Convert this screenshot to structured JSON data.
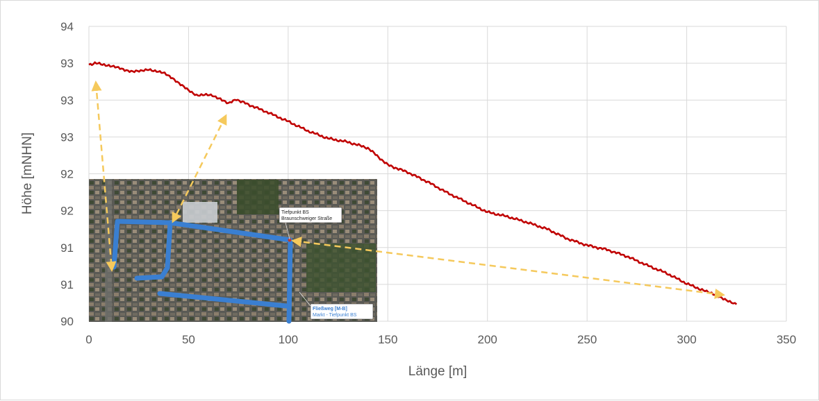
{
  "chart_data": {
    "type": "line",
    "title": "",
    "xlabel": "Länge [m]",
    "ylabel": "Höhe [mNHN]",
    "xlim": [
      0,
      350
    ],
    "ylim": [
      90,
      94
    ],
    "x_ticks": [
      0,
      50,
      100,
      150,
      200,
      250,
      300,
      350
    ],
    "x_tick_labels": [
      "0",
      "50",
      "100",
      "150",
      "200",
      "250",
      "300",
      "350"
    ],
    "y_ticks": [
      90,
      90.5,
      91,
      91.5,
      92,
      92.5,
      93,
      93.5,
      94
    ],
    "y_tick_labels": [
      "90",
      "91",
      "91",
      "92",
      "92",
      "93",
      "93",
      "93",
      "94"
    ],
    "grid": true,
    "series": [
      {
        "color": "#c00000",
        "x": [
          0,
          3,
          6,
          10,
          14,
          18,
          22,
          26,
          30,
          34,
          38,
          42,
          46,
          50,
          54,
          58,
          62,
          66,
          70,
          74,
          80,
          90,
          100,
          110,
          120,
          130,
          140,
          150,
          160,
          170,
          180,
          190,
          200,
          210,
          220,
          230,
          240,
          250,
          260,
          270,
          280,
          290,
          300,
          310,
          315,
          320,
          325
        ],
        "y": [
          93.48,
          93.5,
          93.49,
          93.47,
          93.44,
          93.41,
          93.39,
          93.39,
          93.42,
          93.39,
          93.36,
          93.3,
          93.21,
          93.13,
          93.07,
          93.07,
          93.06,
          93.02,
          92.95,
          93.01,
          92.94,
          92.83,
          92.71,
          92.58,
          92.48,
          92.43,
          92.35,
          92.12,
          92.02,
          91.89,
          91.74,
          91.61,
          91.48,
          91.42,
          91.34,
          91.25,
          91.12,
          91.03,
          90.97,
          90.88,
          90.76,
          90.65,
          90.51,
          90.4,
          90.35,
          90.29,
          90.23
        ]
      }
    ],
    "annotations": [
      "Tiefpunkt BS",
      "Braunschweiger Straße",
      "Fließweg [M-B]",
      "Markt - Tiefpunkt BS"
    ]
  },
  "colors": {
    "line": "#c00000",
    "grid": "#d9d9d9",
    "arrow": "#f5c95c",
    "route": "#3a7fd1"
  },
  "map": {
    "label_top_line1": "Tiefpunkt BS",
    "label_top_line2": "Braunschweiger Straße",
    "label_bottom_line1": "Fließweg [M-B]",
    "label_bottom_line2": "Markt - Tiefpunkt BS"
  }
}
